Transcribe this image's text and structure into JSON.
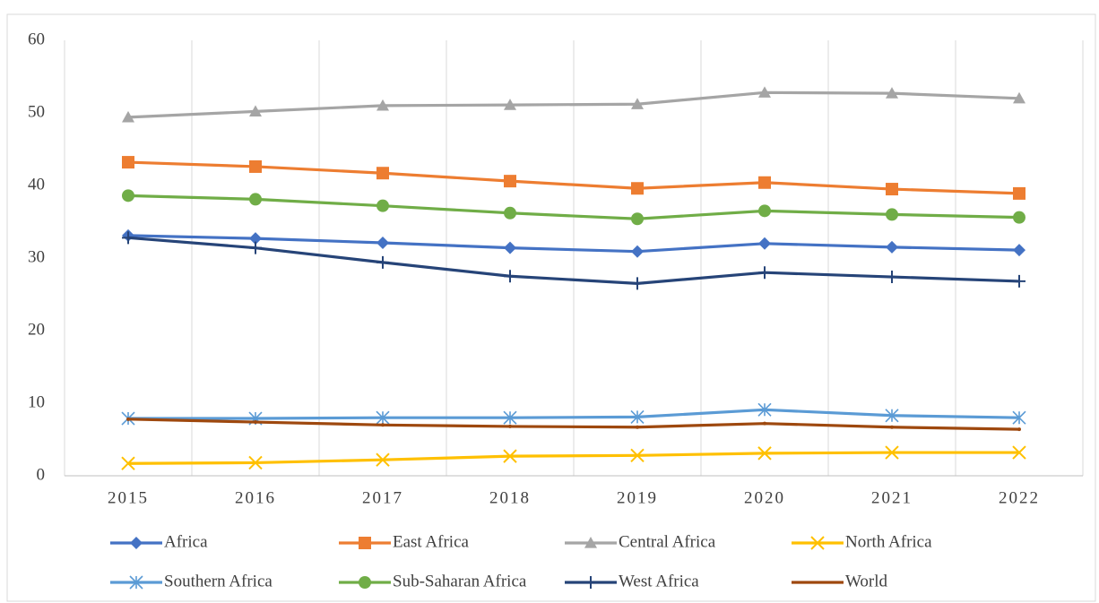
{
  "chart_data": {
    "type": "line",
    "categories": [
      "2015",
      "2016",
      "2017",
      "2018",
      "2019",
      "2020",
      "2021",
      "2022"
    ],
    "series": [
      {
        "name": "Africa",
        "color": "#4472c4",
        "marker": "diamond",
        "values": [
          33.1,
          32.7,
          32.1,
          31.4,
          30.9,
          32.0,
          31.5,
          31.1
        ]
      },
      {
        "name": "East Africa",
        "color": "#ed7d31",
        "marker": "square",
        "values": [
          43.2,
          42.6,
          41.7,
          40.6,
          39.6,
          40.4,
          39.5,
          38.9
        ]
      },
      {
        "name": "Central Africa",
        "color": "#a5a5a5",
        "marker": "triangle",
        "values": [
          49.4,
          50.2,
          51.0,
          51.1,
          51.2,
          52.8,
          52.7,
          52.0
        ]
      },
      {
        "name": "North Africa",
        "color": "#ffc000",
        "marker": "x",
        "values": [
          1.7,
          1.8,
          2.2,
          2.7,
          2.8,
          3.1,
          3.2,
          3.2
        ]
      },
      {
        "name": "Southern Africa",
        "color": "#5b9bd5",
        "marker": "asterisk",
        "values": [
          7.9,
          7.9,
          8.0,
          8.0,
          8.1,
          9.1,
          8.3,
          8.0
        ]
      },
      {
        "name": "Sub-Saharan Africa",
        "color": "#70ad47",
        "marker": "circle",
        "values": [
          38.6,
          38.1,
          37.2,
          36.2,
          35.4,
          36.5,
          36.0,
          35.6
        ]
      },
      {
        "name": "West Africa",
        "color": "#264478",
        "marker": "plus",
        "values": [
          32.8,
          31.4,
          29.4,
          27.5,
          26.5,
          28.0,
          27.4,
          26.8
        ]
      },
      {
        "name": "World",
        "color": "#9e480e",
        "marker": "none",
        "values": [
          7.8,
          7.4,
          7.0,
          6.8,
          6.7,
          7.2,
          6.7,
          6.4
        ]
      }
    ],
    "ylim": [
      0,
      60
    ],
    "yticks": [
      0,
      10,
      20,
      30,
      40,
      50,
      60
    ],
    "grid": "vertical",
    "legend": "bottom"
  }
}
